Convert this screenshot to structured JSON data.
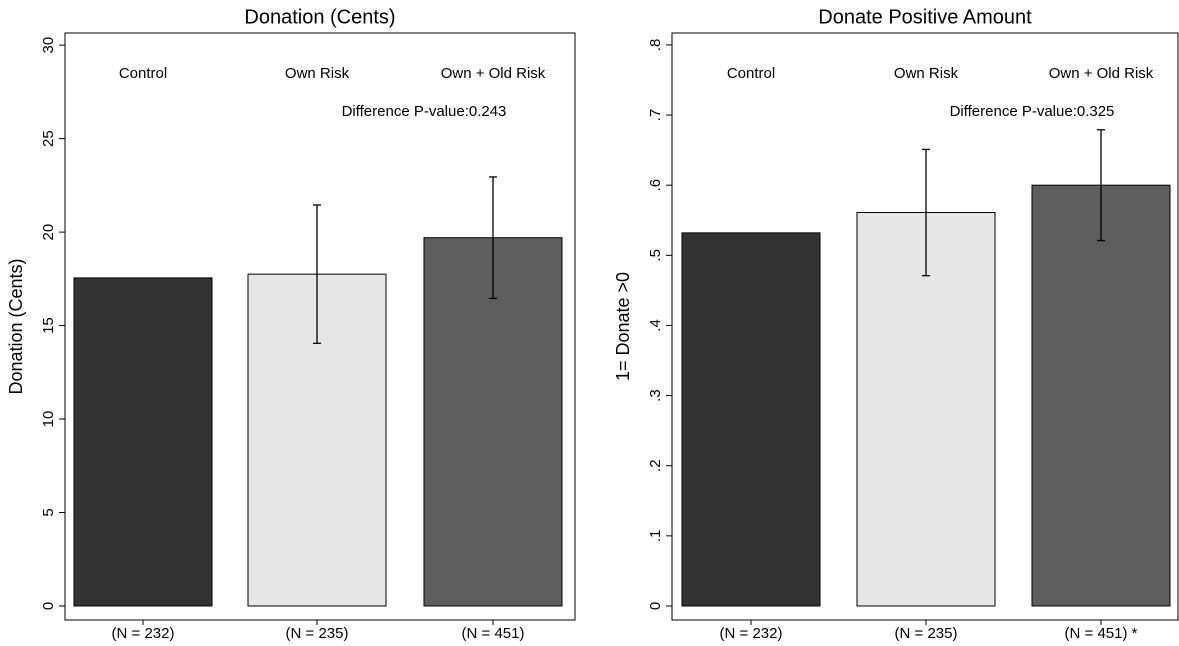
{
  "chart_data": [
    {
      "type": "bar",
      "title": "Donation (Cents)",
      "ylabel": "Donation (Cents)",
      "categories": [
        "Control",
        "Own Risk",
        "Own + Old Risk"
      ],
      "n_labels": [
        "(N = 232)",
        "(N = 235)",
        "(N = 451)"
      ],
      "values": [
        17.55,
        17.75,
        19.7
      ],
      "errors": [
        null,
        3.7,
        3.25
      ],
      "colors": [
        "#333333",
        "#e6e6e6",
        "#5e5e5e"
      ],
      "annotation": "Difference P-value:0.243",
      "ylim": [
        -0.75,
        30.65
      ],
      "yticks": [
        0,
        5,
        10,
        15,
        20,
        25,
        30
      ]
    },
    {
      "type": "bar",
      "title": "Donate Positive Amount",
      "ylabel": "1= Donate >0",
      "categories": [
        "Control",
        "Own Risk",
        "Own + Old Risk"
      ],
      "n_labels": [
        "(N = 232)",
        "(N = 235)",
        "(N = 451) *"
      ],
      "values": [
        0.532,
        0.561,
        0.6
      ],
      "errors": [
        null,
        0.09,
        0.079
      ],
      "colors": [
        "#333333",
        "#e6e6e6",
        "#5e5e5e"
      ],
      "annotation": "Difference P-value:0.325",
      "ylim": [
        -0.02,
        0.817
      ],
      "yticks": [
        0,
        {
          "value": 0.1,
          "label": ".1"
        },
        {
          "value": 0.2,
          "label": ".2"
        },
        {
          "value": 0.3,
          "label": ".3"
        },
        {
          "value": 0.4,
          "label": ".4"
        },
        {
          "value": 0.5,
          "label": ".5"
        },
        {
          "value": 0.6,
          "label": ".6"
        },
        {
          "value": 0.7,
          "label": ".7"
        },
        {
          "value": 0.8,
          "label": ".8"
        }
      ]
    }
  ]
}
